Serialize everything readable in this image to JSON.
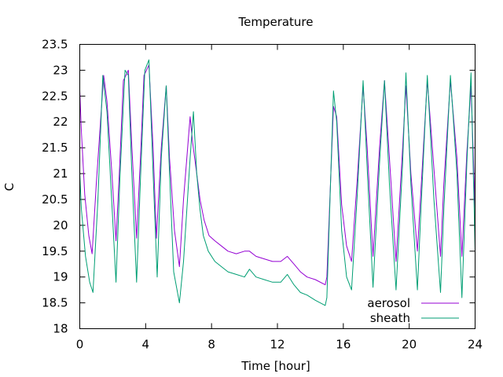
{
  "chart_data": {
    "type": "line",
    "title": "Temperature",
    "xlabel": "Time [hour]",
    "ylabel": "C",
    "xlim": [
      0,
      24
    ],
    "ylim": [
      18,
      23.5
    ],
    "xticks": [
      0,
      4,
      8,
      12,
      16,
      20,
      24
    ],
    "yticks": [
      "18",
      "18.5",
      "19",
      "19.5",
      "20",
      "20.5",
      "21",
      "21.5",
      "22",
      "22.5",
      "23",
      "23.5"
    ],
    "grid": false,
    "legend_position": "bottom-right",
    "series": [
      {
        "name": "aerosol",
        "color": "#9400d3",
        "x": [
          0,
          0.1,
          0.3,
          0.55,
          0.75,
          1.0,
          1.45,
          1.65,
          1.95,
          2.2,
          2.4,
          2.65,
          2.95,
          3.15,
          3.45,
          3.7,
          3.9,
          4.2,
          4.45,
          4.65,
          4.95,
          5.25,
          5.45,
          5.75,
          6.05,
          6.3,
          6.7,
          6.85,
          7.1,
          7.3,
          7.55,
          7.85,
          8.2,
          8.6,
          9.0,
          9.5,
          10.0,
          10.3,
          10.7,
          11.2,
          11.7,
          12.2,
          12.6,
          13.0,
          13.4,
          13.8,
          14.3,
          14.9,
          15.0,
          15.4,
          15.6,
          15.9,
          16.2,
          16.5,
          16.85,
          17.2,
          17.45,
          17.8,
          18.2,
          18.5,
          18.8,
          19.2,
          19.6,
          19.8,
          20.1,
          20.5,
          20.7,
          21.1,
          21.5,
          21.9,
          22.1,
          22.5,
          22.9,
          23.2,
          23.5,
          23.75,
          24.0
        ],
        "y": [
          22.6,
          21.8,
          20.6,
          19.8,
          19.45,
          20.8,
          22.9,
          22.4,
          21.0,
          19.7,
          21.0,
          22.8,
          23.0,
          21.6,
          19.75,
          21.4,
          22.9,
          23.1,
          21.5,
          19.75,
          21.5,
          22.7,
          21.3,
          19.9,
          19.2,
          20.5,
          22.1,
          21.6,
          21.0,
          20.5,
          20.1,
          19.8,
          19.7,
          19.6,
          19.5,
          19.45,
          19.5,
          19.5,
          19.4,
          19.35,
          19.3,
          19.3,
          19.4,
          19.25,
          19.1,
          19.0,
          18.95,
          18.85,
          19.0,
          22.3,
          22.1,
          20.4,
          19.6,
          19.3,
          20.9,
          22.7,
          21.5,
          19.4,
          21.5,
          22.8,
          21.3,
          19.3,
          21.5,
          22.7,
          21.0,
          19.5,
          20.6,
          22.8,
          21.1,
          19.4,
          20.8,
          22.8,
          21.3,
          19.4,
          21.4,
          22.7,
          20.3
        ]
      },
      {
        "name": "sheath",
        "color": "#009e73",
        "x": [
          0,
          0.1,
          0.35,
          0.6,
          0.8,
          1.1,
          1.4,
          1.65,
          1.95,
          2.2,
          2.45,
          2.75,
          2.95,
          3.15,
          3.45,
          3.7,
          3.95,
          4.2,
          4.45,
          4.7,
          4.95,
          5.25,
          5.45,
          5.7,
          6.05,
          6.3,
          6.7,
          6.9,
          7.1,
          7.3,
          7.5,
          7.8,
          8.2,
          8.6,
          9.0,
          9.5,
          10.0,
          10.3,
          10.7,
          11.2,
          11.7,
          12.2,
          12.6,
          13.0,
          13.4,
          13.8,
          14.3,
          14.9,
          15.0,
          15.4,
          15.6,
          15.9,
          16.2,
          16.5,
          16.85,
          17.2,
          17.45,
          17.8,
          18.2,
          18.5,
          18.8,
          19.2,
          19.6,
          19.8,
          20.1,
          20.5,
          20.7,
          21.1,
          21.5,
          21.9,
          22.1,
          22.5,
          22.9,
          23.2,
          23.5,
          23.75,
          24.0
        ],
        "y": [
          21.0,
          20.3,
          19.4,
          18.9,
          18.7,
          20.5,
          22.9,
          22.2,
          20.4,
          18.9,
          21.0,
          23.0,
          22.9,
          21.1,
          18.9,
          21.0,
          23.0,
          23.2,
          21.0,
          19.0,
          21.3,
          22.7,
          21.0,
          19.1,
          18.5,
          19.3,
          21.3,
          22.2,
          21.0,
          20.3,
          19.8,
          19.5,
          19.3,
          19.2,
          19.1,
          19.05,
          19.0,
          19.15,
          19.0,
          18.95,
          18.9,
          18.9,
          19.05,
          18.85,
          18.7,
          18.65,
          18.55,
          18.45,
          18.6,
          22.6,
          22.0,
          19.9,
          19.0,
          18.75,
          20.6,
          22.8,
          21.1,
          18.8,
          21.2,
          22.8,
          20.8,
          18.75,
          21.2,
          22.95,
          20.8,
          18.75,
          20.2,
          22.9,
          20.5,
          18.7,
          20.3,
          22.9,
          21.0,
          18.6,
          21.2,
          22.95,
          19.5
        ]
      }
    ]
  }
}
